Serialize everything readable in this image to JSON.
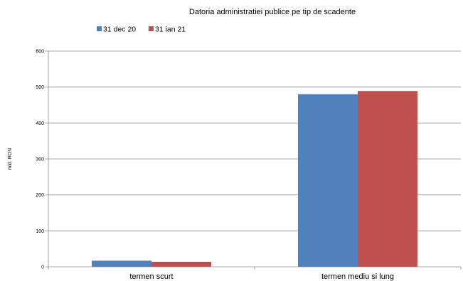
{
  "chart_data": {
    "type": "bar",
    "title": "Datoria administratiei publice  pe tip de scadente",
    "xlabel": "",
    "ylabel": "mld. RON",
    "categories": [
      "termen scurt",
      "termen mediu si lung"
    ],
    "series": [
      {
        "name": "31 dec 20",
        "color": "#4f81bd",
        "values": [
          17,
          480
        ]
      },
      {
        "name": "31 ian 21",
        "color": "#c0504d",
        "values": [
          14,
          489
        ]
      }
    ],
    "ylim": [
      0,
      600
    ],
    "yticks": [
      0,
      100,
      200,
      300,
      400,
      500,
      600
    ],
    "grid": true,
    "legend": "top-left"
  }
}
